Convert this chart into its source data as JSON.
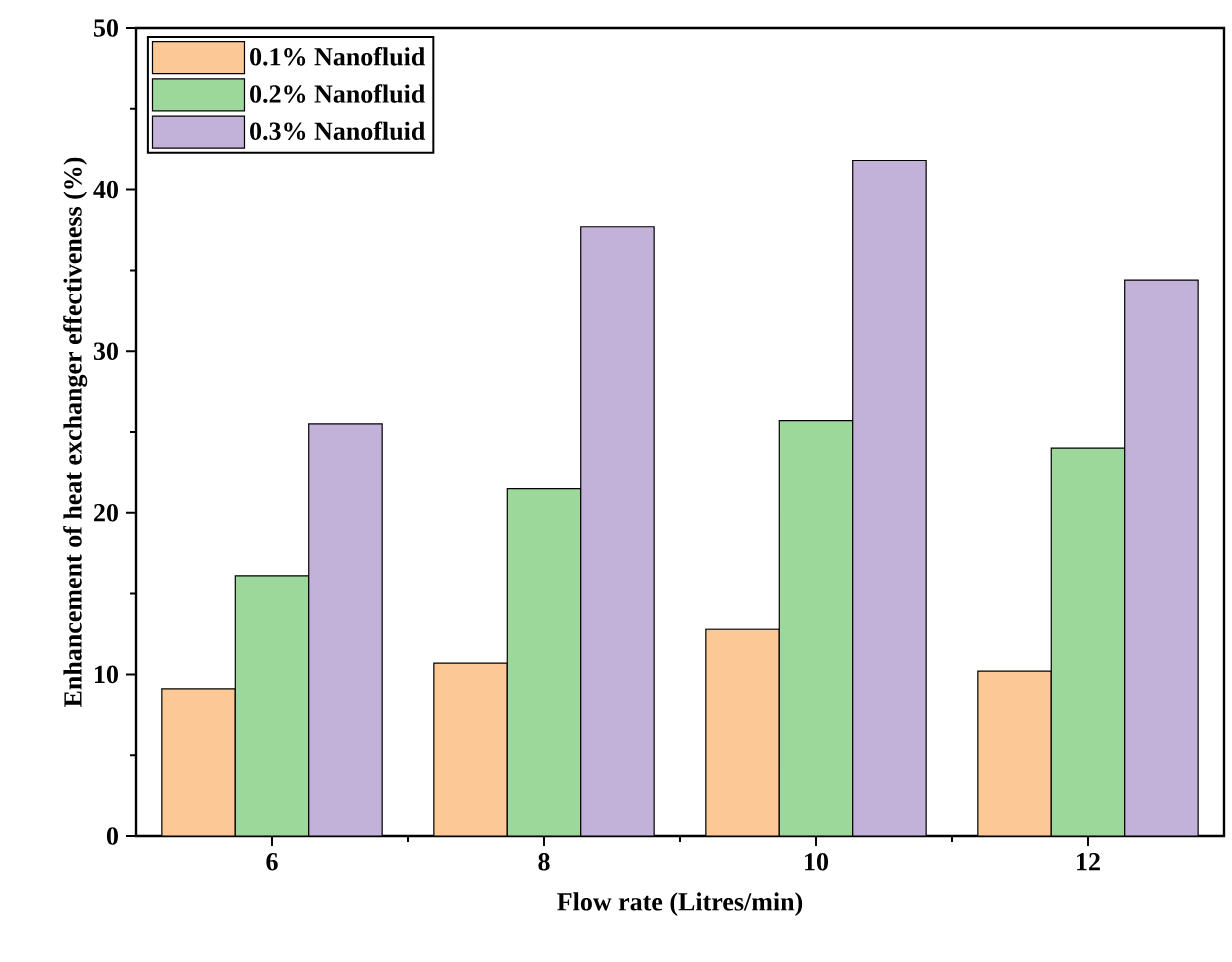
{
  "chart_data": {
    "type": "bar",
    "xlabel": "Flow rate (Litres/min)",
    "ylabel": "Enhancement of heat exchanger effectiveness (%)",
    "categories": [
      "6",
      "8",
      "10",
      "12"
    ],
    "series": [
      {
        "name": "0.1% Nanofluid",
        "color": "#fcc895",
        "values": [
          9.1,
          10.7,
          12.8,
          10.2
        ]
      },
      {
        "name": "0.2% Nanofluid",
        "color": "#9dd89b",
        "values": [
          16.1,
          21.5,
          25.7,
          24.0
        ]
      },
      {
        "name": "0.3% Nanofluid",
        "color": "#c2b1d8",
        "values": [
          25.5,
          37.7,
          41.8,
          34.4
        ]
      }
    ],
    "ylim": [
      0,
      50
    ],
    "yticks": [
      0,
      10,
      20,
      30,
      40,
      50
    ],
    "legend": "top left"
  }
}
